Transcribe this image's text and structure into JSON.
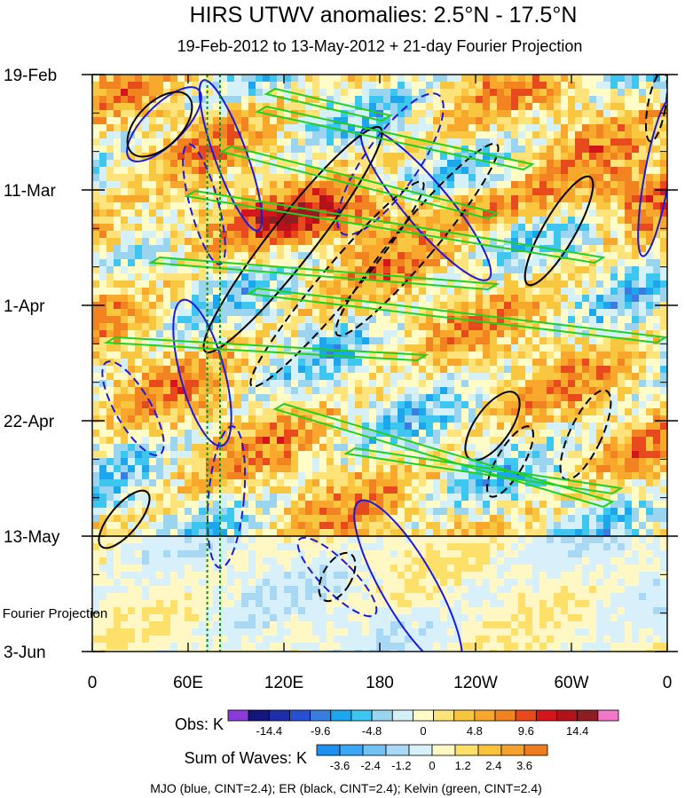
{
  "chart_data": {
    "type": "heatmap",
    "title": "HIRS UTWV anomalies: 2.5°N - 17.5°N",
    "subtitle": "19-Feb-2012 to 13-May-2012 + 21-day Fourier Projection",
    "xlabel": "",
    "ylabel": "",
    "x_ticks": [
      "0",
      "60E",
      "120E",
      "180",
      "120W",
      "60W",
      "0"
    ],
    "x_range_deg_east": [
      0,
      360
    ],
    "y_ticks": [
      "19-Feb",
      "11-Mar",
      "1-Apr",
      "22-Apr",
      "13-May",
      "3-Jun"
    ],
    "y_range": [
      "2012-02-19",
      "2012-06-03"
    ],
    "observation_end": "2012-05-13",
    "projection_label": "Fourier Projection",
    "vertical_markers_deg_east": [
      72,
      80
    ],
    "colorbars": [
      {
        "label": "Obs: K",
        "units": "K",
        "tick_labels": [
          "-14.4",
          "-9.6",
          "-4.8",
          "0",
          "4.8",
          "9.6",
          "14.4"
        ],
        "colors": [
          "#8a3ad8",
          "#15157e",
          "#1c2fa8",
          "#2850d0",
          "#3a7de0",
          "#1ea6ec",
          "#3cc6f0",
          "#9bd4ee",
          "#d6f0f8",
          "#fffcc8",
          "#fde37a",
          "#f9c640",
          "#f6a72c",
          "#f18421",
          "#e74a1c",
          "#d4151a",
          "#b3121a",
          "#8f1e22",
          "#f178c9"
        ]
      },
      {
        "label": "Sum of Waves: K",
        "units": "K",
        "tick_labels": [
          "-3.6",
          "-2.4",
          "-1.2",
          "0",
          "1.2",
          "2.4",
          "3.6"
        ],
        "colors": [
          "#1e90f0",
          "#3aa8f4",
          "#71c2f2",
          "#a8d8f4",
          "#d8f0fa",
          "#fff8c4",
          "#fde06a",
          "#f9c23a",
          "#f5a12c",
          "#ef7d20"
        ]
      }
    ],
    "footer_note": "MJO (blue, CINT=2.4); ER (black, CINT=2.4); Kelvin (green, CINT=2.4)",
    "contour_series": [
      {
        "name": "MJO",
        "color": "#1a1adc",
        "interval": 2.4
      },
      {
        "name": "ER",
        "color": "#000000",
        "interval": 2.4
      },
      {
        "name": "Kelvin",
        "color": "#22d022",
        "interval": 2.4
      }
    ]
  }
}
